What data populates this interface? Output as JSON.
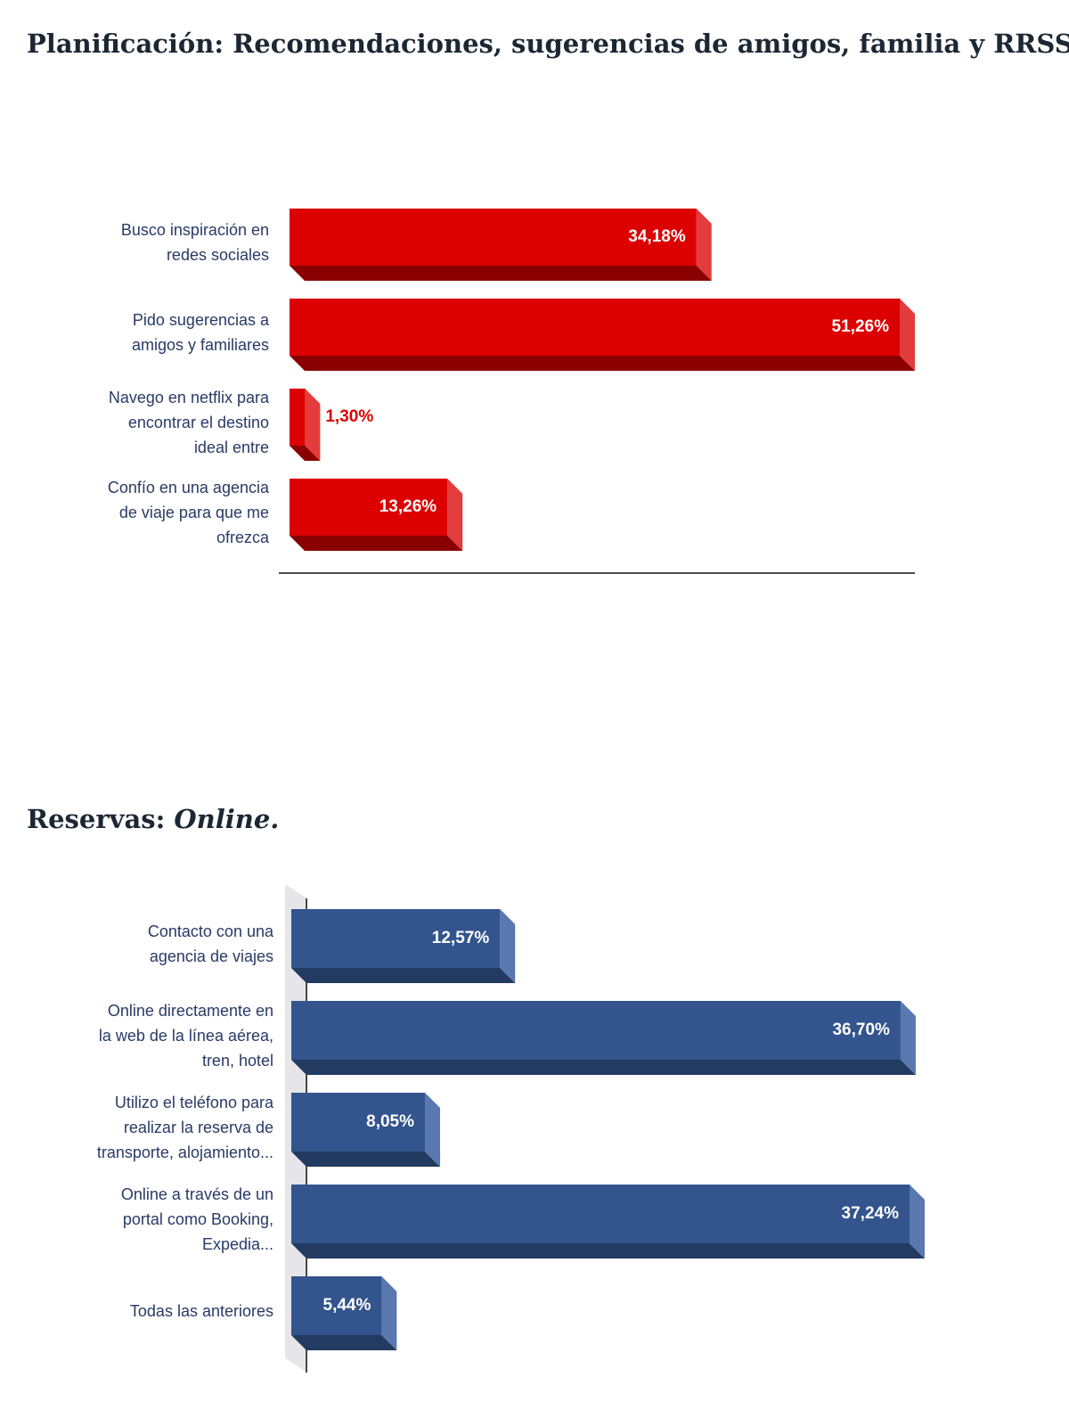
{
  "chart_data": [
    {
      "type": "bar3d",
      "title": "Planificación: Recomendaciones, sugerencias de amigos, familia y RRSS.",
      "categories": [
        "Busco inspiración en redes sociales",
        "Pido sugerencias a amigos y familiares",
        "Navego en netflix para encontrar el destino ideal entre",
        "Confío en una agencia de viaje para que me ofrezca"
      ],
      "values": [
        34.18,
        51.26,
        1.3,
        13.26
      ],
      "value_labels": [
        "34,18%",
        "51,26%",
        "1,30%",
        "13,26%"
      ],
      "color": "#dc0000"
    },
    {
      "type": "bar3d",
      "title": "Reservas:",
      "title_emphasis": "Online.",
      "categories": [
        "Contacto con una agencia de viajes",
        "Online directamente en la web de la línea aérea, tren, hotel",
        "Utilizo el teléfono para realizar la reserva de transporte, alojamiento...",
        "Online a través de un portal como Booking, Expedia...",
        "Todas las anteriores"
      ],
      "values": [
        12.57,
        36.7,
        8.05,
        37.24,
        5.44
      ],
      "value_labels": [
        "12,57%",
        "36,70%",
        "8,05%",
        "37,24%",
        "5,44%"
      ],
      "color": "#33548c"
    }
  ]
}
